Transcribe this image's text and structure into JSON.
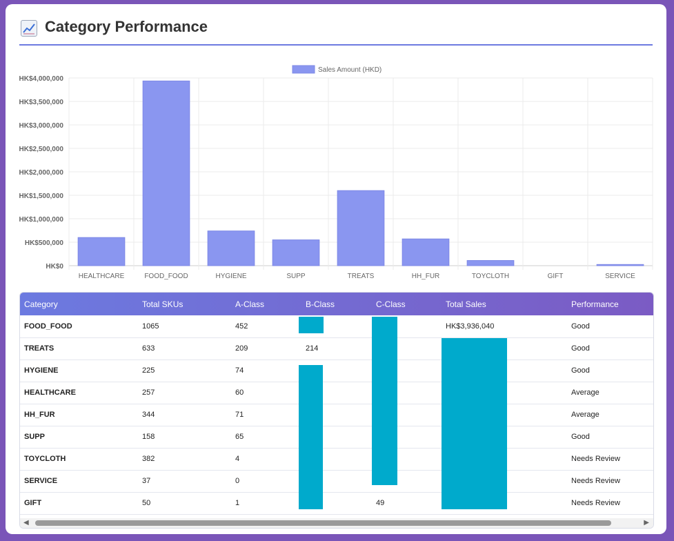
{
  "title": "Category Performance",
  "title_icon": "chart-increasing-icon",
  "colors": {
    "bar": "#8a96f0",
    "accent": "#6c7ae0",
    "overlay": "#00aacc",
    "bg": "#7a55b8"
  },
  "chart_data": {
    "type": "bar",
    "title": "",
    "legend": "Sales Amount (HKD)",
    "legend_position": "top-center",
    "categories": [
      "HEALTHCARE",
      "FOOD_FOOD",
      "HYGIENE",
      "SUPP",
      "TREATS",
      "HH_FUR",
      "TOYCLOTH",
      "GIFT",
      "SERVICE"
    ],
    "values": [
      600000,
      3936040,
      740000,
      550000,
      1600000,
      570000,
      110000,
      0,
      25000
    ],
    "ylim": [
      0,
      4000000
    ],
    "yticks": [
      "HK$0",
      "HK$500,000",
      "HK$1,000,000",
      "HK$1,500,000",
      "HK$2,000,000",
      "HK$2,500,000",
      "HK$3,000,000",
      "HK$3,500,000",
      "HK$4,000,000"
    ],
    "grid": true
  },
  "table": {
    "headers": [
      "Category",
      "Total SKUs",
      "A-Class",
      "B-Class",
      "C-Class",
      "Total Sales",
      "Performance"
    ],
    "rows": [
      [
        "FOOD_FOOD",
        "1065",
        "452",
        "",
        "",
        "HK$3,936,040",
        "Good"
      ],
      [
        "TREATS",
        "633",
        "209",
        "214",
        "",
        "",
        "Good"
      ],
      [
        "HYGIENE",
        "225",
        "74",
        "",
        "",
        "",
        "Good"
      ],
      [
        "HEALTHCARE",
        "257",
        "60",
        "",
        "",
        "",
        "Average"
      ],
      [
        "HH_FUR",
        "344",
        "71",
        "",
        "",
        "",
        "Average"
      ],
      [
        "SUPP",
        "158",
        "65",
        "",
        "",
        "",
        "Good"
      ],
      [
        "TOYCLOTH",
        "382",
        "4",
        "",
        "",
        "",
        "Needs Review"
      ],
      [
        "SERVICE",
        "37",
        "0",
        "",
        "",
        "",
        "Needs Review"
      ],
      [
        "GIFT",
        "50",
        "1",
        "",
        "49",
        "",
        "Needs Review"
      ]
    ]
  }
}
